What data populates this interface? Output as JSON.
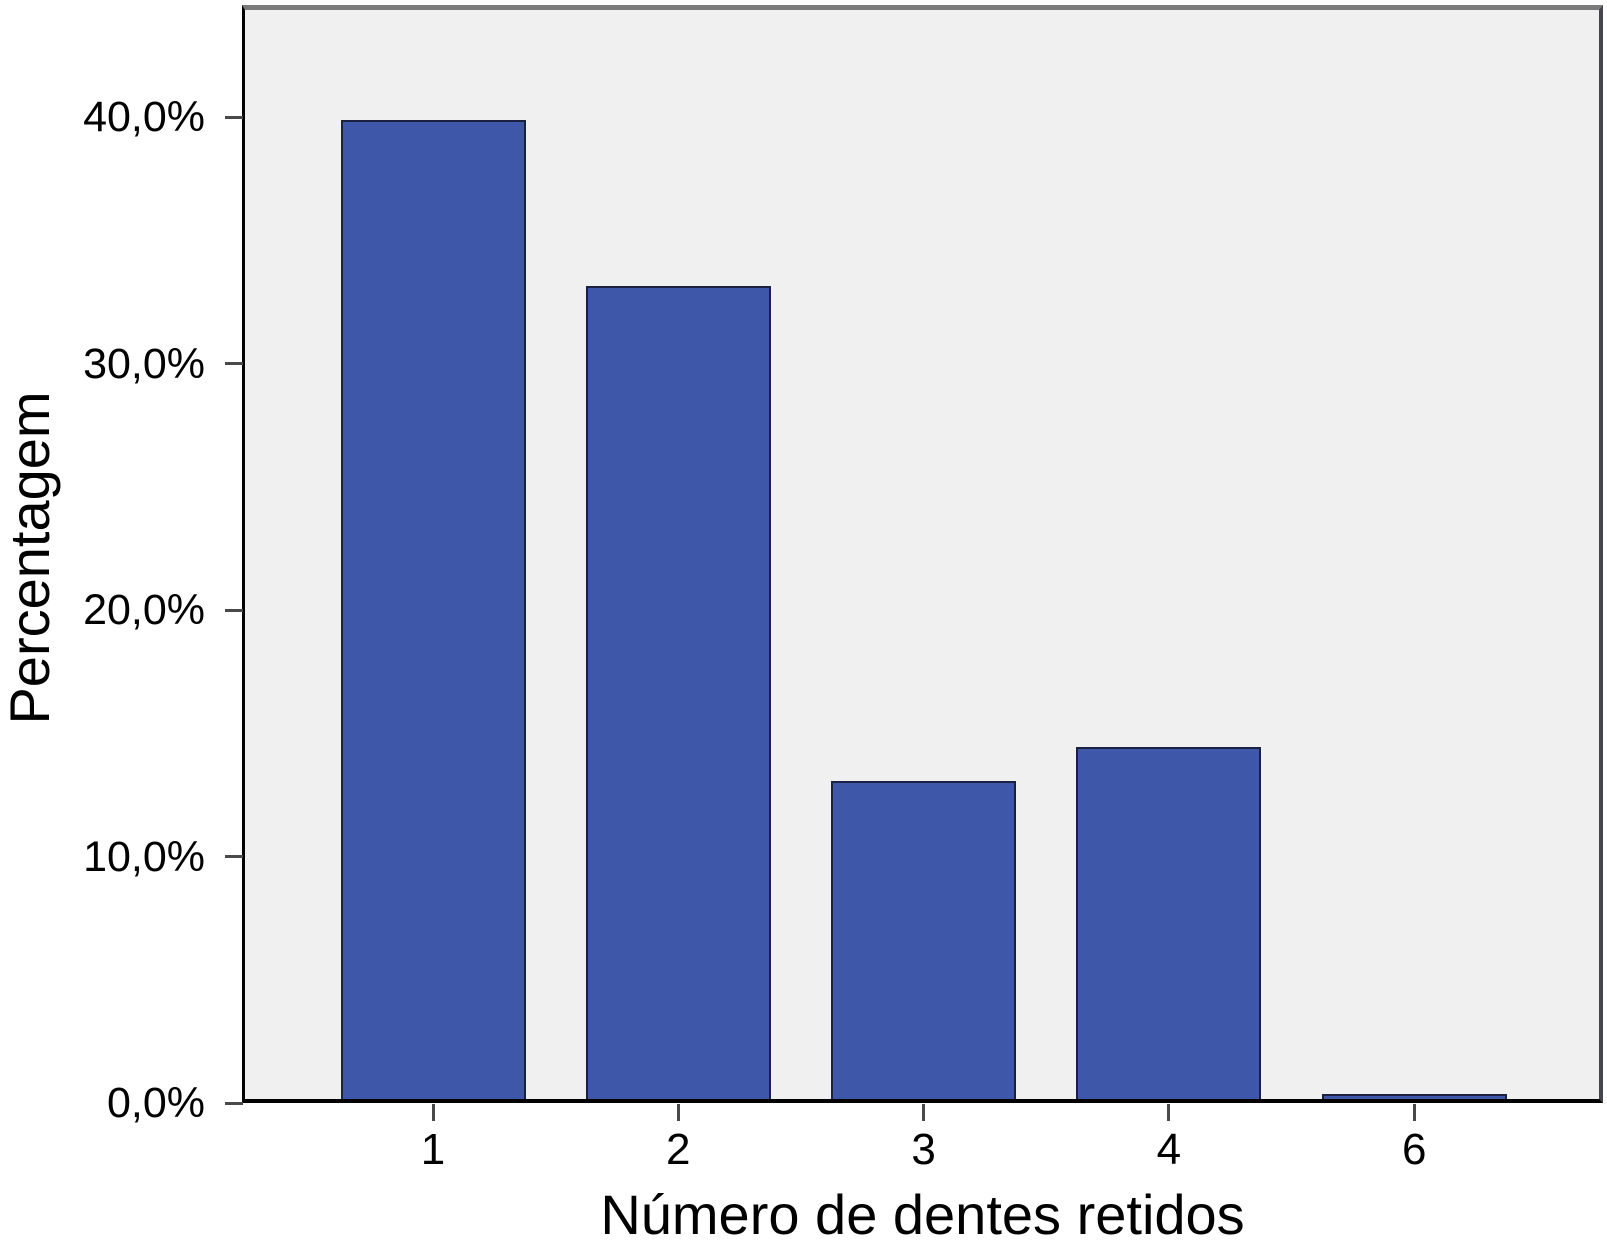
{
  "chart_data": {
    "type": "bar",
    "title": "",
    "categories": [
      "1",
      "2",
      "3",
      "4",
      "6"
    ],
    "values": [
      39.7,
      33.0,
      12.9,
      14.3,
      0.2
    ],
    "xlabel": "Número de dentes retidos",
    "ylabel": "Percentagem",
    "yticks": [
      {
        "label": "0,0%",
        "value": 0
      },
      {
        "label": "10,0%",
        "value": 10
      },
      {
        "label": "20,0%",
        "value": 20
      },
      {
        "label": "30,0%",
        "value": 30
      },
      {
        "label": "40,0%",
        "value": 40
      }
    ],
    "ylim": [
      0,
      44.3
    ],
    "grid": false,
    "legend": false,
    "layout": {
      "legend_position": "none",
      "plot_background_shade": "light-gray"
    },
    "colors": {
      "bar_fill": "#3F57A8",
      "bar_border": "#1B2140",
      "plot_background": "#F0F0F0",
      "page_background": "#FFFFFF",
      "axis_line": "#000000",
      "frame_top": "#7A7A7A",
      "frame_right": "#45454D",
      "tick_mark": "#4A4A4A",
      "text": "#000000"
    }
  }
}
